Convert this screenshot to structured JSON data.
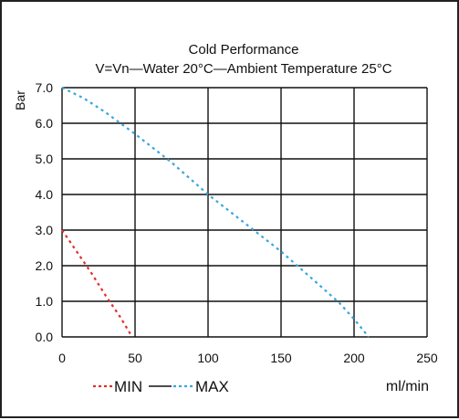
{
  "chart_data": {
    "type": "line",
    "title": "Cold Performance",
    "subtitle": "V=Vn—Water 20°C—Ambient Temperature 25°C",
    "xlabel": "ml/min",
    "ylabel": "Bar",
    "xlim": [
      0,
      250
    ],
    "ylim": [
      0,
      7
    ],
    "x_ticks": [
      "0",
      "50",
      "100",
      "150",
      "200",
      "250"
    ],
    "y_ticks": [
      "0.0",
      "1.0",
      "2.0",
      "3.0",
      "4.0",
      "5.0",
      "6.0",
      "7.0"
    ],
    "grid": true,
    "legend_position": "bottom",
    "series": [
      {
        "name": "MIN",
        "color": "#e0302a",
        "style": "dotted",
        "points": [
          [
            0,
            3.0
          ],
          [
            10,
            2.4
          ],
          [
            20,
            1.8
          ],
          [
            30,
            1.15
          ],
          [
            40,
            0.55
          ],
          [
            48,
            0.0
          ]
        ]
      },
      {
        "name": "MAX",
        "color": "#3aa6dc",
        "style": "dotted",
        "points": [
          [
            0,
            7.0
          ],
          [
            15,
            6.7
          ],
          [
            30,
            6.3
          ],
          [
            50,
            5.7
          ],
          [
            75,
            4.9
          ],
          [
            100,
            4.0
          ],
          [
            125,
            3.2
          ],
          [
            150,
            2.4
          ],
          [
            175,
            1.5
          ],
          [
            190,
            0.95
          ],
          [
            200,
            0.5
          ],
          [
            210,
            0.0
          ]
        ]
      }
    ],
    "legend": {
      "separator_color": "#111111"
    }
  }
}
